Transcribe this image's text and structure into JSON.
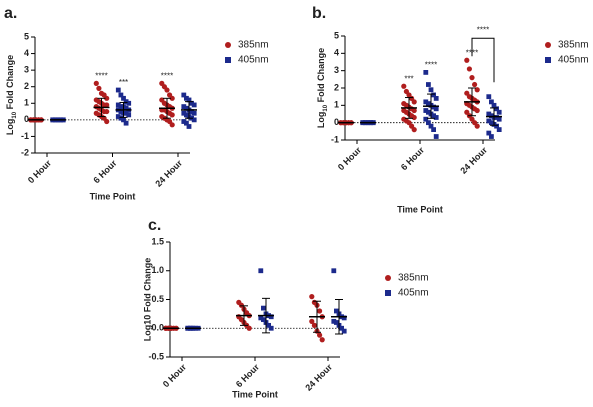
{
  "chart_data": [
    {
      "type": "scatter",
      "panel_label": "a.",
      "ylabel": {
        "base": "Log",
        "sub": "10",
        "rest": " Fold Change"
      },
      "xlabel": "Time Point",
      "categories": [
        "0 Hour",
        "6 Hour",
        "24 Hour"
      ],
      "ylim": [
        -2,
        5
      ],
      "yticks": [
        -2,
        -1,
        0,
        1,
        2,
        3,
        4,
        5
      ],
      "zero_line": true,
      "series": [
        {
          "name": "385nm",
          "color": "#b01e1e",
          "marker": "circle",
          "values": [
            [
              0,
              0,
              0,
              0,
              0,
              0,
              0,
              0,
              0,
              0
            ],
            [
              2.2,
              1.9,
              1.6,
              1.5,
              1.3,
              1.2,
              1.1,
              1.0,
              0.9,
              0.9,
              0.8,
              0.7,
              0.6,
              0.5,
              0.5,
              0.4,
              0.3,
              0.2,
              0.1,
              -0.1
            ],
            [
              2.2,
              2.0,
              1.8,
              1.5,
              1.3,
              1.2,
              1.0,
              0.9,
              0.8,
              0.7,
              0.6,
              0.6,
              0.5,
              0.4,
              0.3,
              0.2,
              0.1,
              0.0,
              -0.1,
              -0.3
            ]
          ],
          "mean": [
            0,
            0.75,
            0.7
          ],
          "sd": [
            0,
            0.55,
            0.6
          ],
          "significance": [
            null,
            "****",
            "****"
          ]
        },
        {
          "name": "405nm",
          "color": "#1c2a8c",
          "marker": "square",
          "values": [
            [
              0,
              0,
              0,
              0,
              0,
              0,
              0,
              0,
              0,
              0
            ],
            [
              1.8,
              1.5,
              1.3,
              1.1,
              1.0,
              0.9,
              0.8,
              0.8,
              0.7,
              0.6,
              0.6,
              0.5,
              0.4,
              0.4,
              0.3,
              0.2,
              0.1,
              0.0,
              -0.2
            ],
            [
              1.5,
              1.3,
              1.2,
              1.0,
              0.9,
              0.8,
              0.7,
              0.6,
              0.5,
              0.4,
              0.4,
              0.3,
              0.2,
              0.1,
              0.0,
              -0.1,
              -0.2,
              -0.4
            ]
          ],
          "mean": [
            0,
            0.6,
            0.6
          ],
          "sd": [
            0,
            0.45,
            0.5
          ],
          "significance": [
            null,
            "***",
            null
          ]
        }
      ]
    },
    {
      "type": "scatter",
      "panel_label": "b.",
      "ylabel": {
        "base": "Log",
        "sub": "10",
        "rest": " Fold Change"
      },
      "xlabel": "Time Point",
      "categories": [
        "0 Hour",
        "6 Hour",
        "24 Hour"
      ],
      "ylim": [
        -1,
        5
      ],
      "yticks": [
        -1,
        0,
        1,
        2,
        3,
        4,
        5
      ],
      "zero_line": true,
      "comparisons": [
        {
          "label": "****",
          "category": "24 Hour"
        }
      ],
      "series": [
        {
          "name": "385nm",
          "color": "#b01e1e",
          "marker": "circle",
          "values": [
            [
              0,
              0,
              0,
              0,
              0,
              0,
              0,
              0,
              0,
              0
            ],
            [
              2.1,
              1.8,
              1.6,
              1.4,
              1.2,
              1.1,
              1.0,
              0.9,
              0.8,
              0.7,
              0.7,
              0.6,
              0.5,
              0.4,
              0.3,
              0.2,
              0.1,
              0.0,
              -0.2,
              -0.4
            ],
            [
              3.6,
              3.1,
              2.6,
              2.2,
              1.9,
              1.7,
              1.5,
              1.4,
              1.3,
              1.2,
              1.1,
              1.0,
              0.9,
              0.8,
              0.7,
              0.6,
              0.4,
              0.2,
              0.0,
              -0.2
            ]
          ],
          "mean": [
            0,
            0.85,
            1.2
          ],
          "sd": [
            0,
            0.6,
            0.8
          ],
          "significance": [
            null,
            "***",
            "****"
          ]
        },
        {
          "name": "405nm",
          "color": "#1c2a8c",
          "marker": "square",
          "values": [
            [
              0,
              0,
              0,
              0,
              0,
              0,
              0,
              0,
              0,
              0
            ],
            [
              2.9,
              2.2,
              1.9,
              1.6,
              1.4,
              1.2,
              1.1,
              1.0,
              0.9,
              0.8,
              0.7,
              0.6,
              0.5,
              0.4,
              0.3,
              0.2,
              0.0,
              -0.2,
              -0.4,
              -0.8
            ],
            [
              1.5,
              1.2,
              1.0,
              0.8,
              0.6,
              0.5,
              0.4,
              0.3,
              0.3,
              0.2,
              0.1,
              0.0,
              -0.1,
              -0.2,
              -0.4,
              -0.6,
              -0.8
            ]
          ],
          "mean": [
            0,
            0.95,
            0.35
          ],
          "sd": [
            0,
            0.7,
            0.5
          ],
          "significance": [
            null,
            "****",
            null
          ]
        }
      ]
    },
    {
      "type": "scatter",
      "panel_label": "c.",
      "ylabel": "Log10 Fold Change",
      "xlabel": "Time Point",
      "categories": [
        "0 Hour",
        "6 Hour",
        "24 Hour"
      ],
      "ylim": [
        -0.5,
        1.5
      ],
      "yticks": [
        -0.5,
        {
          "value": 0,
          "label": "0.0"
        },
        0.5,
        {
          "value": 1,
          "label": "1.0"
        },
        1.5
      ],
      "zero_line": true,
      "series": [
        {
          "name": "385nm",
          "color": "#b01e1e",
          "marker": "circle",
          "values": [
            [
              0,
              0,
              0,
              0,
              0,
              0,
              0,
              0
            ],
            [
              0.45,
              0.4,
              0.33,
              0.27,
              0.22,
              0.2,
              0.15,
              0.1,
              0.05,
              0.0
            ],
            [
              0.55,
              0.45,
              0.4,
              0.3,
              0.2,
              0.12,
              0.05,
              -0.05,
              -0.12,
              -0.2
            ]
          ],
          "mean": [
            0,
            0.22,
            0.2
          ],
          "sd": [
            0,
            0.17,
            0.27
          ]
        },
        {
          "name": "405nm",
          "color": "#1c2a8c",
          "marker": "square",
          "values": [
            [
              0,
              0,
              0,
              0,
              0,
              0,
              0,
              0
            ],
            [
              1.0,
              0.35,
              0.25,
              0.22,
              0.2,
              0.18,
              0.15,
              0.1,
              0.05,
              0.0
            ],
            [
              1.0,
              0.3,
              0.25,
              0.2,
              0.18,
              0.12,
              0.1,
              0.05,
              0.0,
              -0.05
            ]
          ],
          "mean": [
            0,
            0.22,
            0.2
          ],
          "sd": [
            0,
            0.3,
            0.3
          ]
        }
      ]
    }
  ]
}
